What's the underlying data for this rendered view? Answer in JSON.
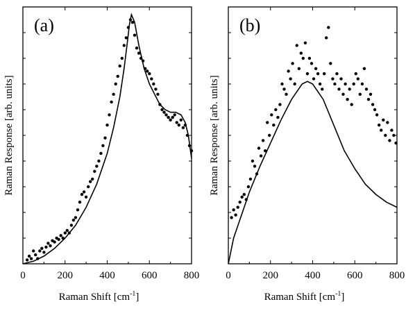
{
  "chart_data": [
    {
      "type": "scatter",
      "panel_label": "(a)",
      "xlabel": "Raman Shift [cm",
      "xlabel_sup": "-1",
      "xlabel_end": "]",
      "ylabel": "Raman Response [arb. units]",
      "xlim": [
        0,
        800
      ],
      "ylim": [
        0,
        1
      ],
      "xticks": [
        0,
        200,
        400,
        600,
        800
      ],
      "yticks_minor": [
        0.1,
        0.2,
        0.3,
        0.4,
        0.5,
        0.6,
        0.7,
        0.8,
        0.9
      ],
      "series": [
        {
          "kind": "points",
          "x": [
            20,
            30,
            40,
            50,
            60,
            70,
            80,
            90,
            100,
            110,
            120,
            130,
            140,
            150,
            160,
            170,
            180,
            190,
            200,
            210,
            220,
            230,
            240,
            250,
            260,
            270,
            280,
            290,
            300,
            310,
            320,
            330,
            340,
            350,
            360,
            370,
            380,
            390,
            400,
            410,
            420,
            430,
            440,
            450,
            460,
            470,
            480,
            490,
            500,
            510,
            520,
            530,
            540,
            550,
            560,
            570,
            580,
            590,
            600,
            610,
            620,
            630,
            640,
            650,
            660,
            670,
            680,
            690,
            700,
            710,
            720,
            730,
            740,
            750,
            760,
            770,
            780,
            790,
            800
          ],
          "y": [
            0.015,
            0.03,
            0.02,
            0.05,
            0.035,
            0.02,
            0.05,
            0.06,
            0.045,
            0.065,
            0.08,
            0.07,
            0.09,
            0.085,
            0.1,
            0.095,
            0.11,
            0.1,
            0.12,
            0.13,
            0.12,
            0.15,
            0.17,
            0.18,
            0.21,
            0.24,
            0.27,
            0.28,
            0.26,
            0.3,
            0.32,
            0.33,
            0.36,
            0.38,
            0.4,
            0.43,
            0.46,
            0.49,
            0.54,
            0.58,
            0.63,
            0.66,
            0.7,
            0.73,
            0.77,
            0.8,
            0.85,
            0.88,
            0.92,
            0.95,
            0.94,
            0.89,
            0.84,
            0.82,
            0.8,
            0.79,
            0.76,
            0.75,
            0.74,
            0.72,
            0.7,
            0.68,
            0.66,
            0.62,
            0.6,
            0.59,
            0.58,
            0.57,
            0.56,
            0.57,
            0.58,
            0.55,
            0.54,
            0.56,
            0.53,
            0.54,
            0.5,
            0.46,
            0.44
          ]
        },
        {
          "kind": "fit",
          "x": [
            0,
            50,
            100,
            150,
            200,
            250,
            300,
            350,
            400,
            430,
            460,
            480,
            495,
            505,
            515,
            530,
            550,
            575,
            600,
            625,
            650,
            675,
            700,
            725,
            750,
            770,
            785,
            800
          ],
          "y": [
            0.0,
            0.01,
            0.03,
            0.06,
            0.1,
            0.15,
            0.22,
            0.31,
            0.43,
            0.53,
            0.65,
            0.76,
            0.86,
            0.93,
            0.97,
            0.94,
            0.85,
            0.76,
            0.7,
            0.66,
            0.62,
            0.6,
            0.59,
            0.59,
            0.58,
            0.55,
            0.5,
            0.41
          ]
        }
      ]
    },
    {
      "type": "scatter",
      "panel_label": "(b)",
      "xlabel": "Raman Shift [cm",
      "xlabel_sup": "-1",
      "xlabel_end": "]",
      "ylabel": "Raman Response [arb. units]",
      "xlim": [
        0,
        800
      ],
      "ylim": [
        0,
        1
      ],
      "xticks": [
        0,
        200,
        400,
        600,
        800
      ],
      "yticks_minor": [
        0.1,
        0.2,
        0.3,
        0.4,
        0.5,
        0.6,
        0.7,
        0.8,
        0.9
      ],
      "series": [
        {
          "kind": "points",
          "x": [
            15,
            25,
            35,
            45,
            55,
            65,
            75,
            85,
            95,
            105,
            115,
            125,
            135,
            145,
            155,
            165,
            175,
            185,
            195,
            205,
            215,
            225,
            235,
            245,
            255,
            265,
            275,
            285,
            295,
            305,
            315,
            325,
            335,
            345,
            355,
            365,
            375,
            385,
            395,
            405,
            415,
            425,
            435,
            445,
            455,
            465,
            475,
            485,
            495,
            505,
            515,
            525,
            535,
            545,
            555,
            565,
            575,
            585,
            595,
            605,
            615,
            625,
            635,
            645,
            655,
            665,
            675,
            685,
            695,
            705,
            715,
            725,
            735,
            745,
            755,
            765,
            775,
            785,
            795
          ],
          "y": [
            0.18,
            0.21,
            0.19,
            0.22,
            0.24,
            0.26,
            0.27,
            0.25,
            0.3,
            0.33,
            0.4,
            0.38,
            0.35,
            0.45,
            0.42,
            0.48,
            0.44,
            0.55,
            0.5,
            0.58,
            0.54,
            0.6,
            0.57,
            0.62,
            0.7,
            0.68,
            0.66,
            0.75,
            0.72,
            0.78,
            0.7,
            0.85,
            0.76,
            0.82,
            0.8,
            0.86,
            0.74,
            0.8,
            0.78,
            0.72,
            0.76,
            0.74,
            0.7,
            0.68,
            0.74,
            0.88,
            0.92,
            0.78,
            0.72,
            0.7,
            0.74,
            0.68,
            0.72,
            0.66,
            0.7,
            0.64,
            0.68,
            0.62,
            0.7,
            0.74,
            0.72,
            0.66,
            0.7,
            0.76,
            0.68,
            0.64,
            0.66,
            0.62,
            0.6,
            0.58,
            0.54,
            0.52,
            0.56,
            0.5,
            0.55,
            0.48,
            0.52,
            0.5,
            0.47
          ]
        },
        {
          "kind": "fit",
          "x": [
            0,
            25,
            50,
            75,
            100,
            150,
            200,
            250,
            300,
            350,
            375,
            400,
            450,
            500,
            550,
            600,
            650,
            700,
            750,
            800
          ],
          "y": [
            0.0,
            0.1,
            0.16,
            0.22,
            0.28,
            0.38,
            0.47,
            0.56,
            0.64,
            0.7,
            0.71,
            0.7,
            0.64,
            0.54,
            0.44,
            0.37,
            0.31,
            0.27,
            0.24,
            0.22
          ]
        }
      ]
    }
  ]
}
